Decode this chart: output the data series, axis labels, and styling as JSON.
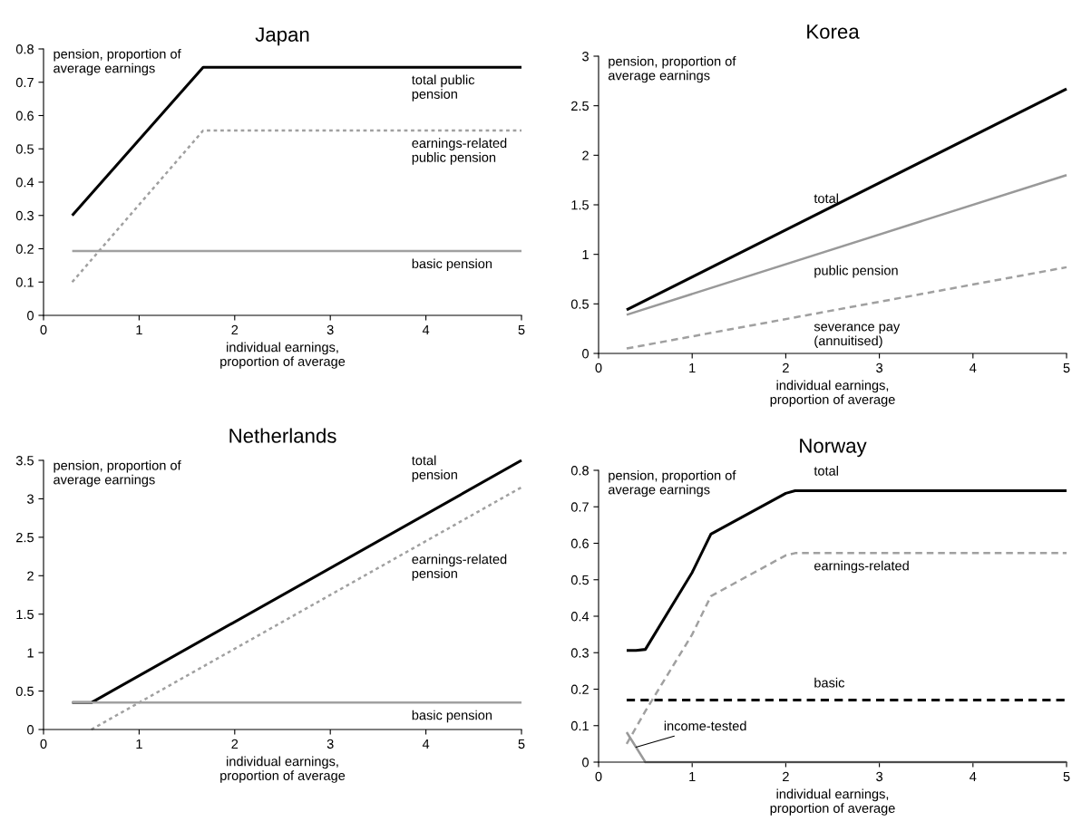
{
  "chart_data": [
    {
      "type": "line",
      "title": "Japan",
      "xlabel": "individual earnings,\nproportion of average",
      "ylabel": "pension, proportion of\naverage earnings",
      "xlim": [
        0,
        5
      ],
      "xticks": [
        0,
        1,
        2,
        3,
        4,
        5
      ],
      "ylim": [
        0,
        0.8
      ],
      "yticks": [
        0,
        0.1,
        0.2,
        0.3,
        0.4,
        0.5,
        0.6,
        0.7,
        0.8
      ],
      "grid": false,
      "legend": false,
      "marker": "none",
      "series": [
        {
          "name": "total public\npension",
          "color": "#000000",
          "line_style": "solid",
          "x": [
            0.3,
            1.67,
            5
          ],
          "values": [
            0.3,
            0.745,
            0.745
          ]
        },
        {
          "name": "earnings-related\npublic pension",
          "color": "#a0a0a0",
          "line_style": "dotted",
          "x": [
            0.3,
            1.67,
            5
          ],
          "values": [
            0.1,
            0.555,
            0.555
          ]
        },
        {
          "name": "basic pension",
          "color": "#a0a0a0",
          "line_style": "solid",
          "x": [
            0.3,
            5
          ],
          "values": [
            0.193,
            0.193
          ]
        }
      ]
    },
    {
      "type": "line",
      "title": "Korea",
      "xlabel": "individual earnings,\nproportion of average",
      "ylabel": "pension, proportion of\naverage earnings",
      "xlim": [
        0,
        5
      ],
      "xticks": [
        0,
        1,
        2,
        3,
        4,
        5
      ],
      "ylim": [
        0,
        3
      ],
      "yticks": [
        0,
        0.5,
        1,
        1.5,
        2,
        2.5,
        3
      ],
      "grid": false,
      "legend": false,
      "marker": "none",
      "series": [
        {
          "name": "total",
          "color": "#000000",
          "line_style": "solid",
          "x": [
            0.3,
            5
          ],
          "values": [
            0.44,
            2.67
          ]
        },
        {
          "name": "public pension",
          "color": "#999999",
          "line_style": "solid",
          "x": [
            0.3,
            5
          ],
          "values": [
            0.39,
            1.8
          ]
        },
        {
          "name": "severance pay\n(annuitised)",
          "color": "#a0a0a0",
          "line_style": "dashed",
          "x": [
            0.3,
            5
          ],
          "values": [
            0.05,
            0.87
          ]
        }
      ]
    },
    {
      "type": "line",
      "title": "Netherlands",
      "xlabel": "individual earnings,\nproportion of average",
      "ylabel": "pension, proportion of\naverage earnings",
      "xlim": [
        0,
        5
      ],
      "xticks": [
        0,
        1,
        2,
        3,
        4,
        5
      ],
      "ylim": [
        0,
        3.5
      ],
      "yticks": [
        0,
        0.5,
        1,
        1.5,
        2,
        2.5,
        3,
        3.5
      ],
      "grid": false,
      "legend": false,
      "marker": "none",
      "series": [
        {
          "name": "total\npension",
          "color": "#000000",
          "line_style": "solid",
          "x": [
            0.3,
            0.5,
            5
          ],
          "values": [
            0.35,
            0.35,
            3.5
          ]
        },
        {
          "name": "earnings-related\npension",
          "color": "#a0a0a0",
          "line_style": "dotted",
          "x": [
            0.5,
            5
          ],
          "values": [
            0,
            3.15
          ]
        },
        {
          "name": "basic pension",
          "color": "#a0a0a0",
          "line_style": "solid",
          "x": [
            0.3,
            5
          ],
          "values": [
            0.35,
            0.35
          ]
        }
      ]
    },
    {
      "type": "line",
      "title": "Norway",
      "xlabel": "individual earnings,\nproportion of average",
      "ylabel": "pension, proportion of\naverage earnings",
      "xlim": [
        0,
        5
      ],
      "xticks": [
        0,
        1,
        2,
        3,
        4,
        5
      ],
      "ylim": [
        0,
        0.8
      ],
      "yticks": [
        0,
        0.1,
        0.2,
        0.3,
        0.4,
        0.5,
        0.6,
        0.7,
        0.8
      ],
      "grid": false,
      "legend": false,
      "marker": "none",
      "annotations": [
        {
          "text": "income-tested",
          "x": 0.4,
          "y": 0.041
        }
      ],
      "series": [
        {
          "name": "total",
          "color": "#000000",
          "line_style": "solid",
          "x": [
            0.3,
            0.4,
            0.5,
            1.0,
            1.2,
            2.0,
            2.1,
            5
          ],
          "values": [
            0.306,
            0.306,
            0.309,
            0.52,
            0.625,
            0.737,
            0.744,
            0.744
          ]
        },
        {
          "name": "earnings-related",
          "color": "#a0a0a0",
          "line_style": "dashed",
          "x": [
            0.3,
            0.5,
            1.0,
            1.2,
            2.0,
            2.1,
            5
          ],
          "values": [
            0.05,
            0.14,
            0.35,
            0.455,
            0.567,
            0.573,
            0.573
          ]
        },
        {
          "name": "basic",
          "color": "#000000",
          "line_style": "dashed",
          "x": [
            0.3,
            5
          ],
          "values": [
            0.17,
            0.17
          ]
        },
        {
          "color": "#999999",
          "line_style": "solid",
          "x": [
            0.3,
            0.5,
            5
          ],
          "values": [
            0.082,
            0,
            0
          ]
        }
      ]
    }
  ]
}
